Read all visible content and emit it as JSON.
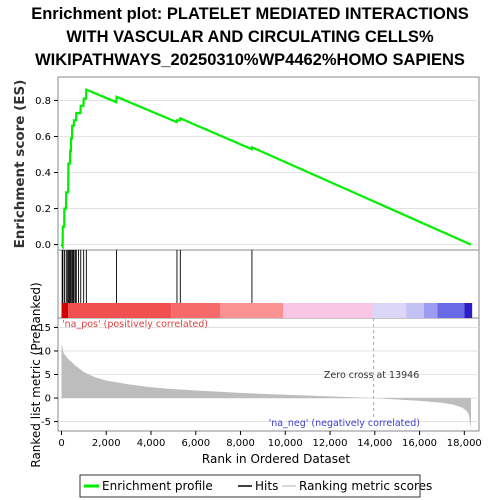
{
  "title_lines": [
    "Enrichment plot: PLATELET MEDIATED INTERACTIONS",
    "WITH VASCULAR AND CIRCULATING CELLS%",
    "WIKIPATHWAYS_20250310%WP4462%HOMO SAPIENS"
  ],
  "colors": {
    "es_line": "#00ee00",
    "hits": "#000000",
    "metric_fill": "#bdbdbd",
    "pos_label": "#e04040",
    "neg_label": "#4040d0",
    "zero_cross_line": "#aaaaaa"
  },
  "chart_data": {
    "type": "line",
    "x_range": [
      0,
      18500
    ],
    "x_ticks": [
      "0",
      "2,000",
      "4,000",
      "6,000",
      "8,000",
      "10,000",
      "12,000",
      "14,000",
      "16,000",
      "18,000"
    ],
    "x_tick_values": [
      0,
      2000,
      4000,
      6000,
      8000,
      10000,
      12000,
      14000,
      16000,
      18000
    ],
    "xlabel": "Rank in Ordered Dataset",
    "es_panel": {
      "ylabel": "Enrichment score (ES)",
      "ylim": [
        -0.03,
        0.93
      ],
      "y_ticks": [
        "0.0",
        "0.2",
        "0.4",
        "0.6",
        "0.8"
      ],
      "y_tick_values": [
        0,
        0.2,
        0.4,
        0.6,
        0.8
      ],
      "series": [
        {
          "name": "Enrichment profile",
          "x": [
            0,
            50,
            60,
            120,
            130,
            200,
            210,
            300,
            310,
            380,
            390,
            420,
            430,
            470,
            480,
            550,
            560,
            650,
            660,
            850,
            860,
            980,
            990,
            1100,
            1110,
            2450,
            2460,
            5150,
            5160,
            5300,
            5310,
            8500,
            8510,
            18300
          ],
          "y": [
            0,
            -0.01,
            0.1,
            0.1,
            0.2,
            0.2,
            0.29,
            0.29,
            0.45,
            0.45,
            0.52,
            0.52,
            0.59,
            0.59,
            0.66,
            0.66,
            0.69,
            0.69,
            0.73,
            0.73,
            0.77,
            0.77,
            0.81,
            0.81,
            0.86,
            0.79,
            0.82,
            0.68,
            0.69,
            0.69,
            0.7,
            0.53,
            0.54,
            0.0
          ]
        }
      ]
    },
    "hits": [
      30,
      60,
      130,
      210,
      260,
      310,
      360,
      390,
      430,
      480,
      520,
      560,
      620,
      660,
      760,
      860,
      990,
      1110,
      2460,
      5160,
      5310,
      8510
    ],
    "heatmap_segments": [
      {
        "x0": 0,
        "x1": 300,
        "color": "#d40000"
      },
      {
        "x0": 300,
        "x1": 4900,
        "color": "#f05050"
      },
      {
        "x0": 4900,
        "x1": 7100,
        "color": "#f66a6a"
      },
      {
        "x0": 7100,
        "x1": 9900,
        "color": "#fb9292"
      },
      {
        "x0": 9900,
        "x1": 13900,
        "color": "#fac6e6"
      },
      {
        "x0": 13900,
        "x1": 15400,
        "color": "#dcd6f8"
      },
      {
        "x0": 15400,
        "x1": 16200,
        "color": "#c4c2f4"
      },
      {
        "x0": 16200,
        "x1": 16800,
        "color": "#9c9cf2"
      },
      {
        "x0": 16800,
        "x1": 18000,
        "color": "#6a6ae6"
      },
      {
        "x0": 18000,
        "x1": 18350,
        "color": "#2a1ec8"
      }
    ],
    "metric_panel": {
      "ylabel": "Ranked list metric (PreRanked)",
      "ylim": [
        -7,
        17
      ],
      "y_ticks": [
        "-5",
        "0",
        "5",
        "10",
        "15"
      ],
      "y_tick_values": [
        -5,
        0,
        5,
        10,
        15
      ],
      "x": [
        0,
        100,
        300,
        600,
        1000,
        1500,
        2000,
        3000,
        4000,
        5000,
        6000,
        8000,
        10000,
        12000,
        13946,
        15000,
        16000,
        17000,
        17500,
        17900,
        18100,
        18200,
        18280,
        18300
      ],
      "y": [
        11.5,
        9.5,
        8.3,
        7.0,
        5.5,
        4.4,
        3.7,
        2.9,
        2.3,
        1.9,
        1.6,
        1.1,
        0.7,
        0.35,
        0,
        -0.3,
        -0.6,
        -1.0,
        -1.4,
        -2.0,
        -2.7,
        -3.5,
        -6.0,
        -6.3
      ],
      "pos_label": "'na_pos' (positively correlated)",
      "neg_label": "'na_neg' (negatively correlated)",
      "zero_cross_text": "Zero cross at 13946",
      "zero_cross_x": 13946
    },
    "legend": {
      "placement": "bottom",
      "entries": [
        "Enrichment profile",
        "Hits",
        "Ranking metric scores"
      ]
    }
  }
}
